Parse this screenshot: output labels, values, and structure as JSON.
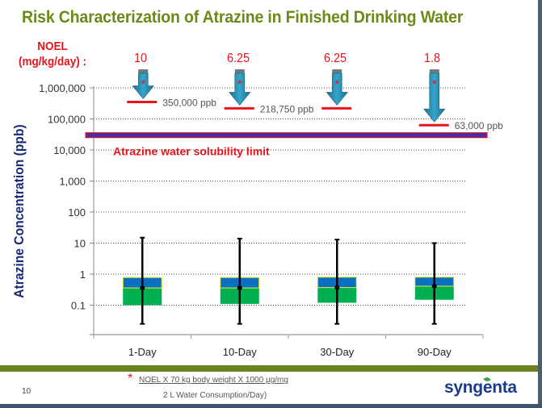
{
  "slide": {
    "title": "Risk Characterization  of Atrazine  in Finished Drinking Water",
    "page_number": "10",
    "brand": "syngenta",
    "noel_label_line1": "NOEL",
    "noel_label_line2": "(mg/kg/day) :",
    "footnote_star": "*",
    "footnote_line1": "NOEL X 70 kg body weight  X 1000 µg/mg",
    "footnote_line2": "2 L Water Consumption/Day)",
    "colors": {
      "title": "#6b8a1a",
      "noel_red": "#e8141c",
      "axis_label_navy": "#1a2a7a",
      "footer_bar": "#6b821e",
      "logo_blue": "#1b3a8c",
      "box_upper": "#0a6fc2",
      "box_lower": "#00b050",
      "box_outline": "#e6f020",
      "solubility_line": "#4030b0",
      "arrow": "#2a88a8"
    }
  },
  "chart_data": {
    "type": "box",
    "title": "Risk Characterization  of Atrazine  in Finished Drinking Water",
    "xlabel": "",
    "ylabel": "Atrazine Concentration (ppb)",
    "yscale": "log",
    "ylim": [
      0.02,
      1000000
    ],
    "yticks": [
      1000000,
      100000,
      10000,
      1000,
      100,
      10,
      1,
      0.1
    ],
    "ytick_labels": [
      "1,000,000",
      "100,000",
      "10,000",
      "1,000",
      "100",
      "10",
      "1",
      "0.1"
    ],
    "grid": "horizontal dotted",
    "categories": [
      "1-Day",
      "10-Day",
      "30-Day",
      "90-Day"
    ],
    "boxes": [
      {
        "category": "1-Day",
        "whisker_high": 15,
        "box_high": 0.78,
        "median": 0.36,
        "box_low": 0.1,
        "whisker_low": 0.025
      },
      {
        "category": "10-Day",
        "whisker_high": 14,
        "box_high": 0.78,
        "median": 0.36,
        "box_low": 0.11,
        "whisker_low": 0.025
      },
      {
        "category": "30-Day",
        "whisker_high": 13,
        "box_high": 0.8,
        "median": 0.37,
        "box_low": 0.12,
        "whisker_low": 0.025
      },
      {
        "category": "90-Day",
        "whisker_high": 10,
        "box_high": 0.8,
        "median": 0.41,
        "box_low": 0.15,
        "whisker_low": 0.025
      }
    ],
    "noel_values": [
      "10",
      "6.25",
      "6.25",
      "1.8"
    ],
    "thresholds": [
      {
        "category": "1-Day",
        "value": 350000,
        "label": "350,000 ppb"
      },
      {
        "category": "10-Day",
        "value": 218750,
        "label": "218,750 ppb"
      },
      {
        "category": "30-Day",
        "value": 218750,
        "label": ""
      },
      {
        "category": "90-Day",
        "value": 63000,
        "label": "63,000 ppb"
      }
    ],
    "solubility_limit": {
      "value": 30000,
      "label": "Atrazine water solubility limit"
    }
  }
}
